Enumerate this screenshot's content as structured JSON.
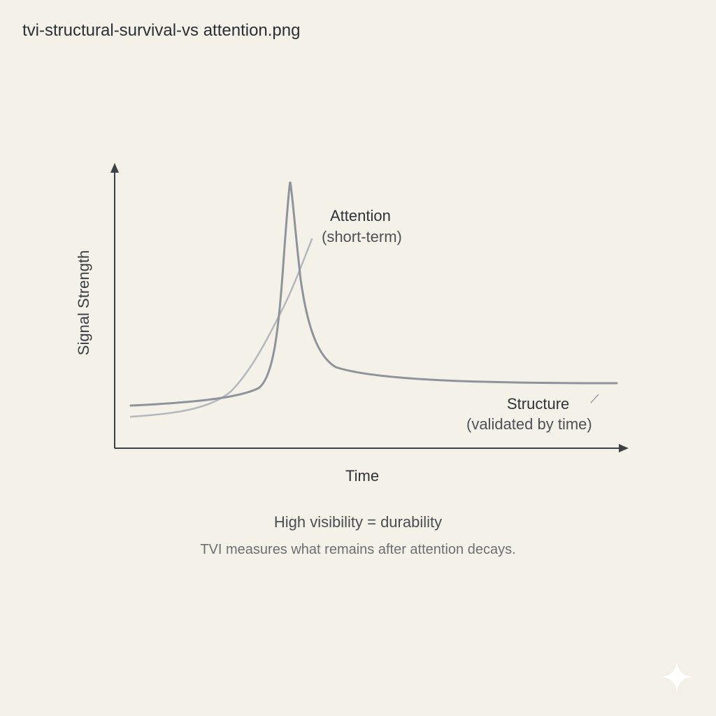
{
  "file_title": "tvi-structural-survival-vs attention.png",
  "chart_data": {
    "type": "line",
    "xlabel": "Time",
    "ylabel": "Signal Strength",
    "series": [
      {
        "name": "Attention",
        "description": "(short-term)"
      },
      {
        "name": "Structure",
        "description": "(validated by time)"
      }
    ]
  },
  "caption": {
    "main": "High visibility = durability",
    "sub": "TVI measures what remains after attention decays."
  },
  "colors": {
    "background": "#f4f1e8",
    "axis": "#3d4148",
    "attention_curve": "#8f939c",
    "structure_curve": "#b4b8be"
  },
  "icons": {
    "corner": "sparkle-icon"
  }
}
